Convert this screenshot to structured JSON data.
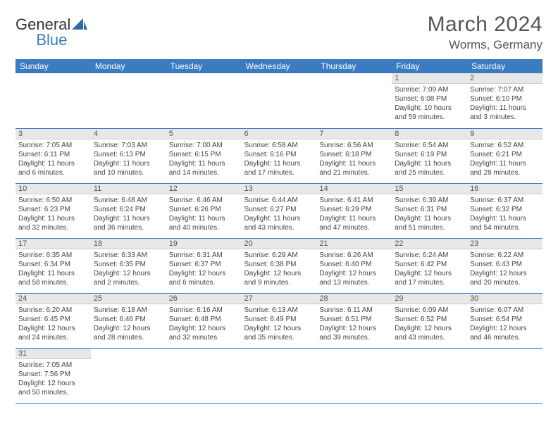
{
  "logo": {
    "text_a": "General",
    "text_b": "Blue"
  },
  "title": "March 2024",
  "location": "Worms, Germany",
  "colors": {
    "header_bg": "#3b7bbf",
    "header_fg": "#ffffff",
    "daynum_bg": "#e8e8e8",
    "border": "#3b7bbf",
    "text": "#444444"
  },
  "day_headers": [
    "Sunday",
    "Monday",
    "Tuesday",
    "Wednesday",
    "Thursday",
    "Friday",
    "Saturday"
  ],
  "weeks": [
    [
      null,
      null,
      null,
      null,
      null,
      {
        "n": "1",
        "sr": "Sunrise: 7:09 AM",
        "ss": "Sunset: 6:08 PM",
        "d1": "Daylight: 10 hours",
        "d2": "and 59 minutes."
      },
      {
        "n": "2",
        "sr": "Sunrise: 7:07 AM",
        "ss": "Sunset: 6:10 PM",
        "d1": "Daylight: 11 hours",
        "d2": "and 3 minutes."
      }
    ],
    [
      {
        "n": "3",
        "sr": "Sunrise: 7:05 AM",
        "ss": "Sunset: 6:11 PM",
        "d1": "Daylight: 11 hours",
        "d2": "and 6 minutes."
      },
      {
        "n": "4",
        "sr": "Sunrise: 7:03 AM",
        "ss": "Sunset: 6:13 PM",
        "d1": "Daylight: 11 hours",
        "d2": "and 10 minutes."
      },
      {
        "n": "5",
        "sr": "Sunrise: 7:00 AM",
        "ss": "Sunset: 6:15 PM",
        "d1": "Daylight: 11 hours",
        "d2": "and 14 minutes."
      },
      {
        "n": "6",
        "sr": "Sunrise: 6:58 AM",
        "ss": "Sunset: 6:16 PM",
        "d1": "Daylight: 11 hours",
        "d2": "and 17 minutes."
      },
      {
        "n": "7",
        "sr": "Sunrise: 6:56 AM",
        "ss": "Sunset: 6:18 PM",
        "d1": "Daylight: 11 hours",
        "d2": "and 21 minutes."
      },
      {
        "n": "8",
        "sr": "Sunrise: 6:54 AM",
        "ss": "Sunset: 6:19 PM",
        "d1": "Daylight: 11 hours",
        "d2": "and 25 minutes."
      },
      {
        "n": "9",
        "sr": "Sunrise: 6:52 AM",
        "ss": "Sunset: 6:21 PM",
        "d1": "Daylight: 11 hours",
        "d2": "and 28 minutes."
      }
    ],
    [
      {
        "n": "10",
        "sr": "Sunrise: 6:50 AM",
        "ss": "Sunset: 6:23 PM",
        "d1": "Daylight: 11 hours",
        "d2": "and 32 minutes."
      },
      {
        "n": "11",
        "sr": "Sunrise: 6:48 AM",
        "ss": "Sunset: 6:24 PM",
        "d1": "Daylight: 11 hours",
        "d2": "and 36 minutes."
      },
      {
        "n": "12",
        "sr": "Sunrise: 6:46 AM",
        "ss": "Sunset: 6:26 PM",
        "d1": "Daylight: 11 hours",
        "d2": "and 40 minutes."
      },
      {
        "n": "13",
        "sr": "Sunrise: 6:44 AM",
        "ss": "Sunset: 6:27 PM",
        "d1": "Daylight: 11 hours",
        "d2": "and 43 minutes."
      },
      {
        "n": "14",
        "sr": "Sunrise: 6:41 AM",
        "ss": "Sunset: 6:29 PM",
        "d1": "Daylight: 11 hours",
        "d2": "and 47 minutes."
      },
      {
        "n": "15",
        "sr": "Sunrise: 6:39 AM",
        "ss": "Sunset: 6:31 PM",
        "d1": "Daylight: 11 hours",
        "d2": "and 51 minutes."
      },
      {
        "n": "16",
        "sr": "Sunrise: 6:37 AM",
        "ss": "Sunset: 6:32 PM",
        "d1": "Daylight: 11 hours",
        "d2": "and 54 minutes."
      }
    ],
    [
      {
        "n": "17",
        "sr": "Sunrise: 6:35 AM",
        "ss": "Sunset: 6:34 PM",
        "d1": "Daylight: 11 hours",
        "d2": "and 58 minutes."
      },
      {
        "n": "18",
        "sr": "Sunrise: 6:33 AM",
        "ss": "Sunset: 6:35 PM",
        "d1": "Daylight: 12 hours",
        "d2": "and 2 minutes."
      },
      {
        "n": "19",
        "sr": "Sunrise: 6:31 AM",
        "ss": "Sunset: 6:37 PM",
        "d1": "Daylight: 12 hours",
        "d2": "and 6 minutes."
      },
      {
        "n": "20",
        "sr": "Sunrise: 6:29 AM",
        "ss": "Sunset: 6:38 PM",
        "d1": "Daylight: 12 hours",
        "d2": "and 9 minutes."
      },
      {
        "n": "21",
        "sr": "Sunrise: 6:26 AM",
        "ss": "Sunset: 6:40 PM",
        "d1": "Daylight: 12 hours",
        "d2": "and 13 minutes."
      },
      {
        "n": "22",
        "sr": "Sunrise: 6:24 AM",
        "ss": "Sunset: 6:42 PM",
        "d1": "Daylight: 12 hours",
        "d2": "and 17 minutes."
      },
      {
        "n": "23",
        "sr": "Sunrise: 6:22 AM",
        "ss": "Sunset: 6:43 PM",
        "d1": "Daylight: 12 hours",
        "d2": "and 20 minutes."
      }
    ],
    [
      {
        "n": "24",
        "sr": "Sunrise: 6:20 AM",
        "ss": "Sunset: 6:45 PM",
        "d1": "Daylight: 12 hours",
        "d2": "and 24 minutes."
      },
      {
        "n": "25",
        "sr": "Sunrise: 6:18 AM",
        "ss": "Sunset: 6:46 PM",
        "d1": "Daylight: 12 hours",
        "d2": "and 28 minutes."
      },
      {
        "n": "26",
        "sr": "Sunrise: 6:16 AM",
        "ss": "Sunset: 6:48 PM",
        "d1": "Daylight: 12 hours",
        "d2": "and 32 minutes."
      },
      {
        "n": "27",
        "sr": "Sunrise: 6:13 AM",
        "ss": "Sunset: 6:49 PM",
        "d1": "Daylight: 12 hours",
        "d2": "and 35 minutes."
      },
      {
        "n": "28",
        "sr": "Sunrise: 6:11 AM",
        "ss": "Sunset: 6:51 PM",
        "d1": "Daylight: 12 hours",
        "d2": "and 39 minutes."
      },
      {
        "n": "29",
        "sr": "Sunrise: 6:09 AM",
        "ss": "Sunset: 6:52 PM",
        "d1": "Daylight: 12 hours",
        "d2": "and 43 minutes."
      },
      {
        "n": "30",
        "sr": "Sunrise: 6:07 AM",
        "ss": "Sunset: 6:54 PM",
        "d1": "Daylight: 12 hours",
        "d2": "and 46 minutes."
      }
    ],
    [
      {
        "n": "31",
        "sr": "Sunrise: 7:05 AM",
        "ss": "Sunset: 7:56 PM",
        "d1": "Daylight: 12 hours",
        "d2": "and 50 minutes."
      },
      null,
      null,
      null,
      null,
      null,
      null
    ]
  ]
}
